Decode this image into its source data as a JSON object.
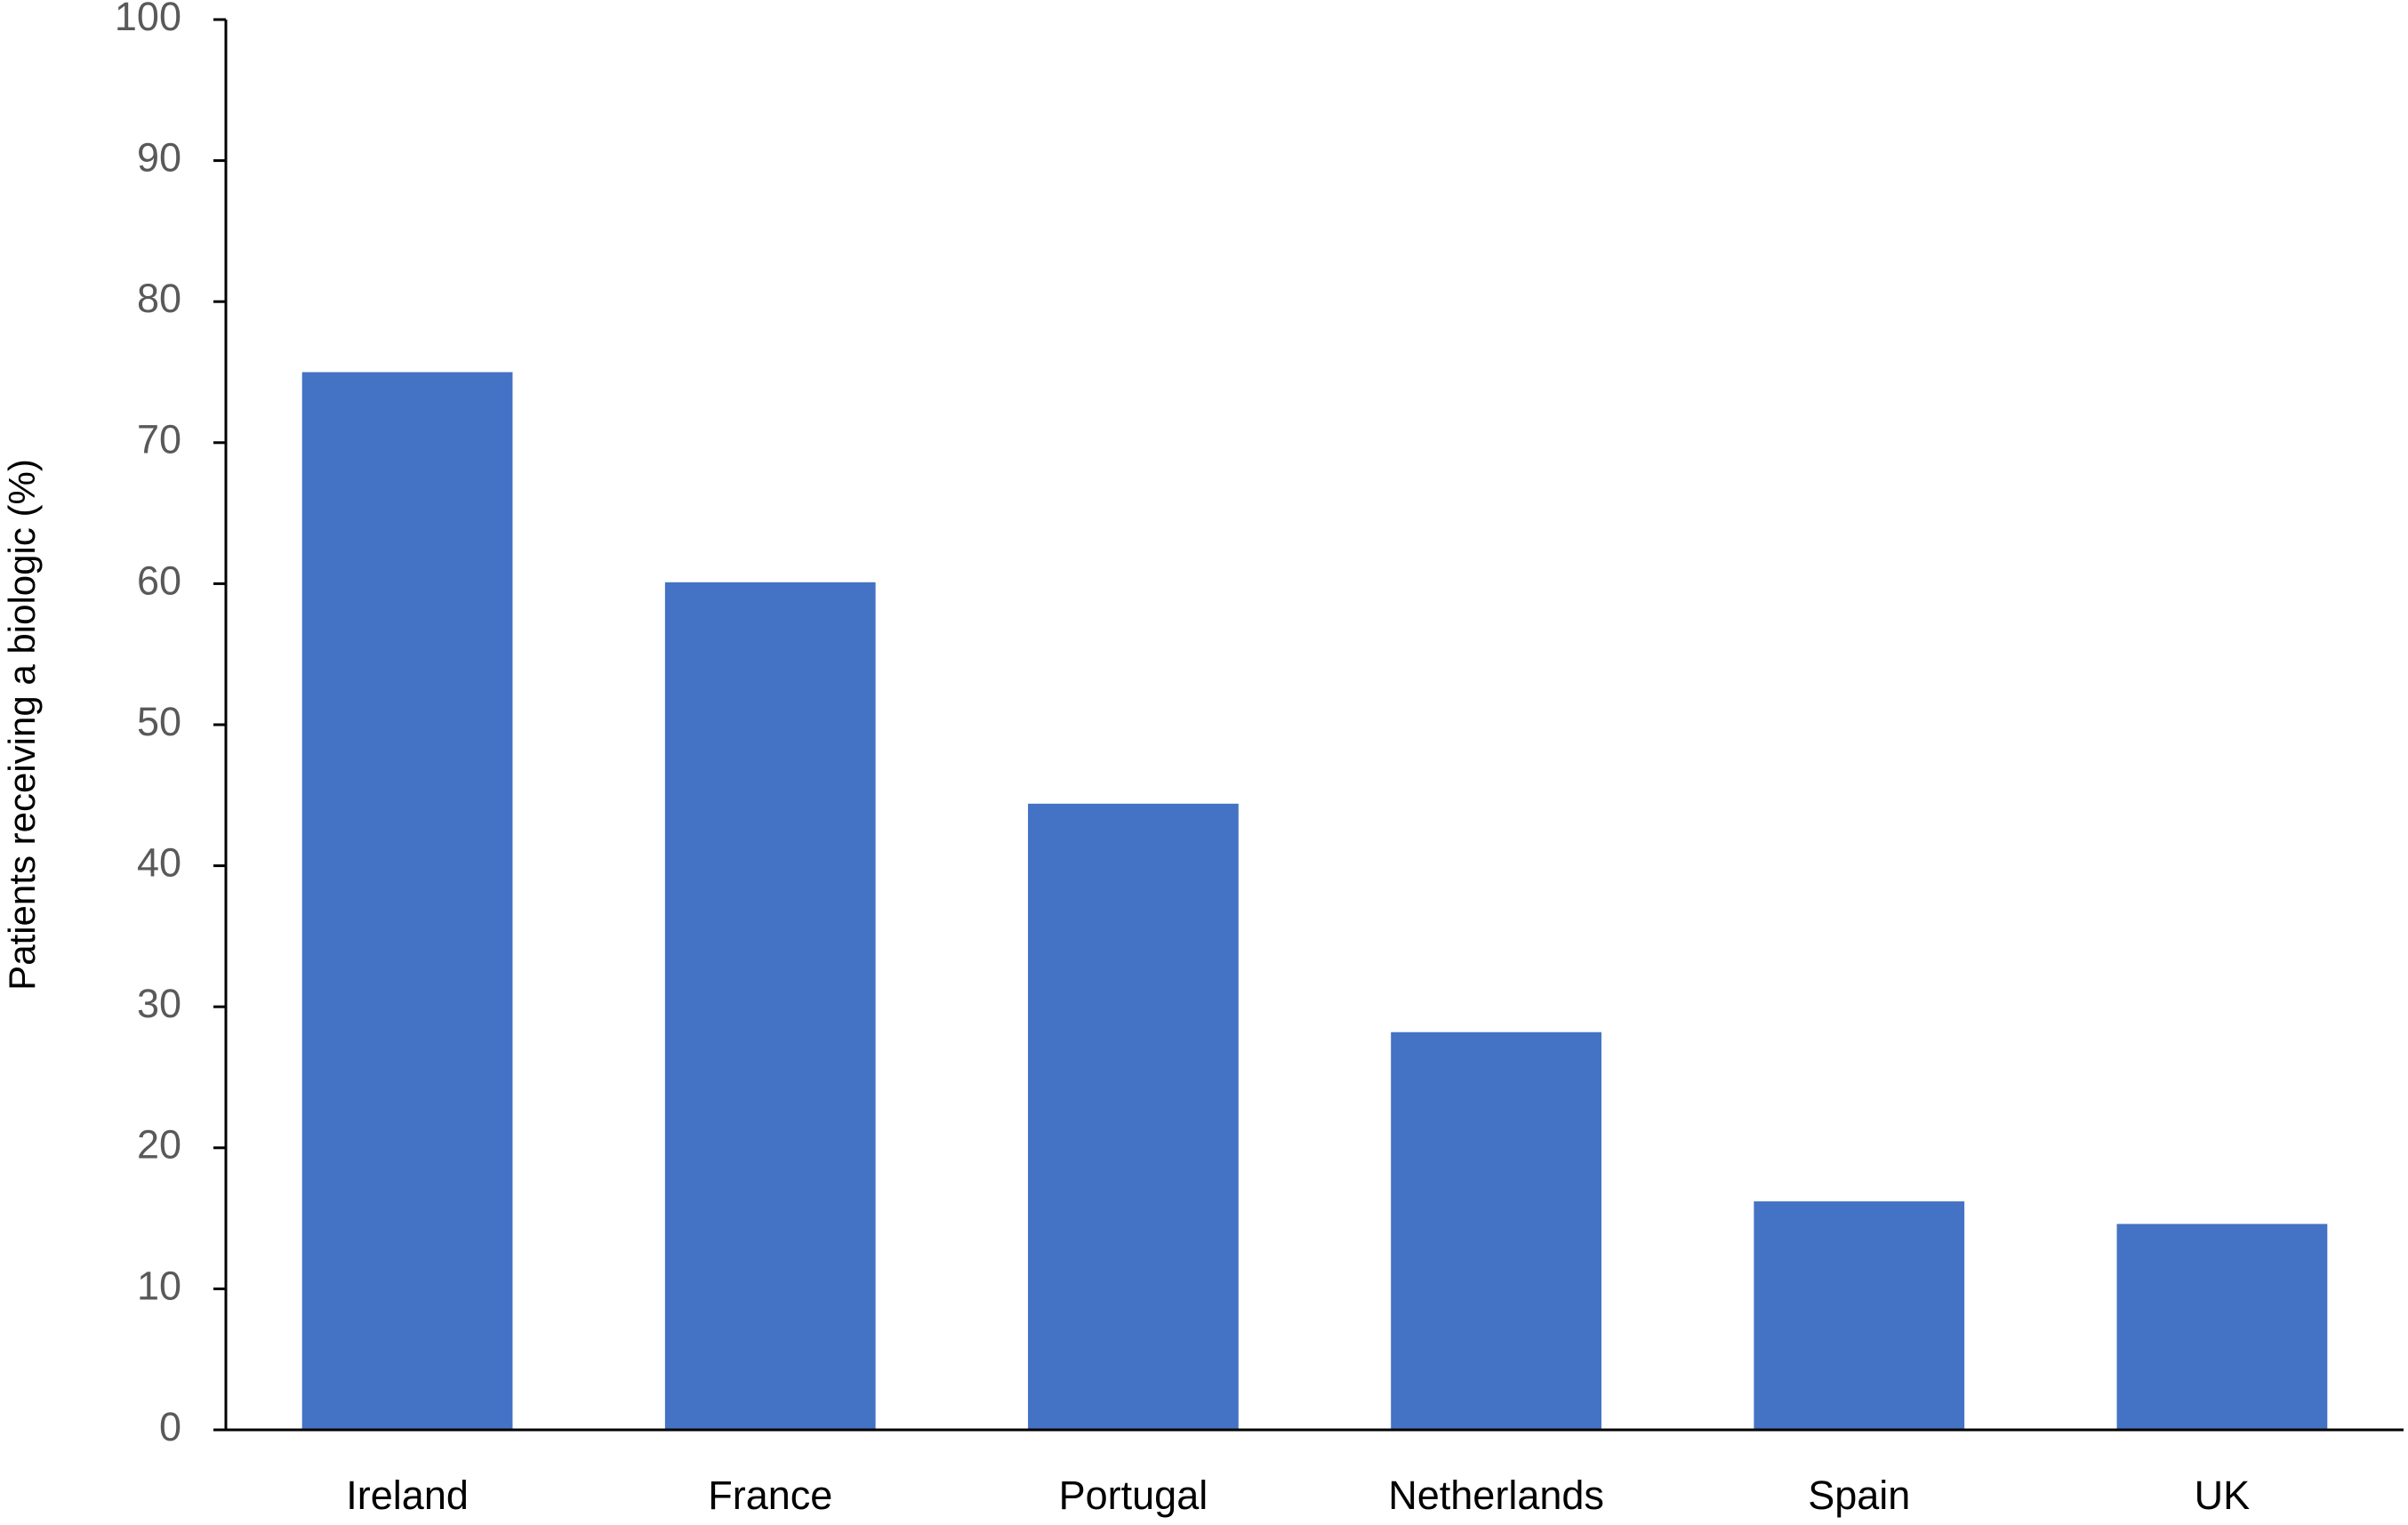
{
  "chart_data": {
    "type": "bar",
    "y_label": "Patients receiving a biologic (%)",
    "categories": [
      "Ireland",
      "France",
      "Portugal",
      "Netherlands",
      "Spain",
      "UK"
    ],
    "values": [
      75,
      60.1,
      44.4,
      28.2,
      16.2,
      14.6
    ],
    "color": "#4472c4",
    "ylim": [
      0,
      100
    ],
    "yticks": [
      0,
      10,
      20,
      30,
      40,
      50,
      60,
      70,
      80,
      90,
      100
    ],
    "grid": false
  }
}
